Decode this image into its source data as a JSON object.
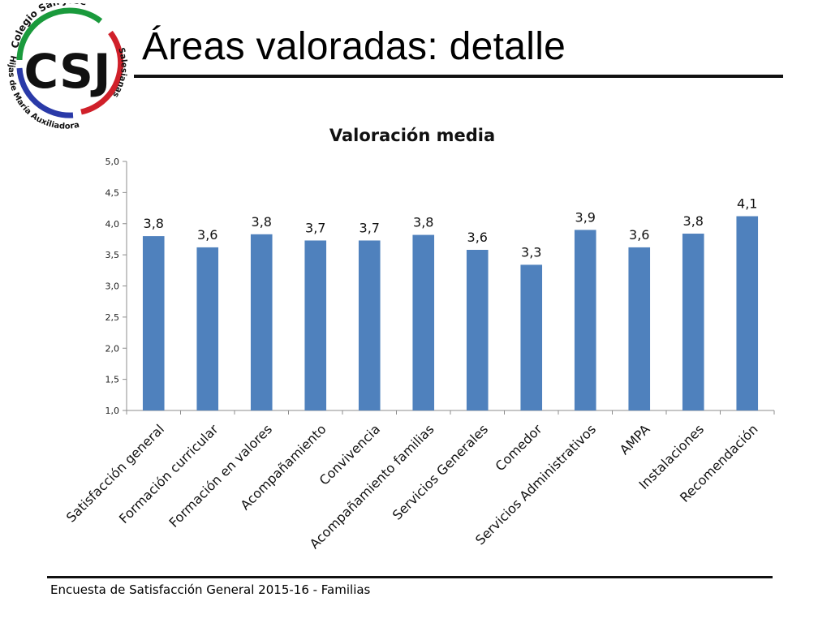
{
  "logo": {
    "letters": "CSJ",
    "top_text": "Colegio San José",
    "right_text": "Salesianas",
    "bottom_text": "Hijas de María Auxiliadora",
    "colors": {
      "green": "#1a9a3c",
      "red": "#d0202a",
      "blue": "#2a3aa8"
    }
  },
  "slide": {
    "title": "Áreas valoradas: detalle",
    "footer": "Encuesta  de Satisfacción General 2015-16 - Familias"
  },
  "chart_data": {
    "type": "bar",
    "title": "Valoración media",
    "categories": [
      "Satisfacción general",
      "Formación curricular",
      "Formación en valores",
      "Acompañamiento",
      "Convivencia",
      "Acompañamiento familias",
      "Servicios Generales",
      "Comedor",
      "Servicios Administrativos",
      "AMPA",
      "Instalaciones",
      "Recomendación"
    ],
    "values": [
      3.8,
      3.62,
      3.83,
      3.73,
      3.73,
      3.82,
      3.58,
      3.34,
      3.9,
      3.62,
      3.84,
      4.12
    ],
    "data_labels": [
      "3,8",
      "3,6",
      "3,8",
      "3,7",
      "3,7",
      "3,8",
      "3,6",
      "3,3",
      "3,9",
      "3,6",
      "3,8",
      "4,1"
    ],
    "ylim": [
      1.0,
      5.0
    ],
    "yticks": [
      1.0,
      1.5,
      2.0,
      2.5,
      3.0,
      3.5,
      4.0,
      4.5,
      5.0
    ],
    "ytick_labels": [
      "1,0",
      "1,5",
      "2,0",
      "2,5",
      "3,0",
      "3,5",
      "4,0",
      "4,5",
      "5,0"
    ],
    "bar_color": "#4f81bd",
    "grid": false,
    "legend": "none"
  }
}
